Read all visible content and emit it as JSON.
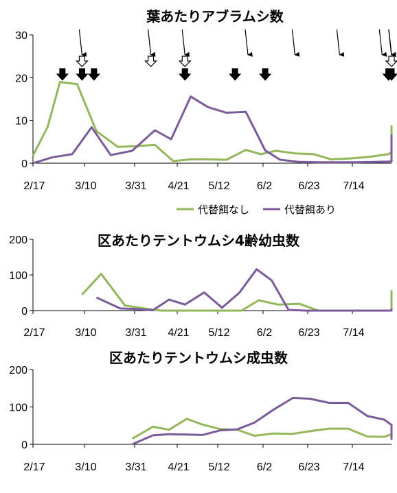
{
  "chart_data": [
    {
      "type": "line",
      "title": "葉あたりアブラムシ数",
      "xlabel": "",
      "ylabel": "",
      "x_ticks": [
        "2/17",
        "3/10",
        "3/31",
        "4/21",
        "5/12",
        "6/2",
        "6/23",
        "7/14"
      ],
      "ylim": [
        0,
        30
      ],
      "y_ticks": [
        "0",
        "10",
        "20",
        "30"
      ],
      "legend": "bottom-right",
      "series": [
        {
          "name": "代替餌なし",
          "color": "#92b65a",
          "points": [
            [
              0,
              1.8
            ],
            [
              6,
              8.5
            ],
            [
              11,
              19
            ],
            [
              18,
              18.5
            ],
            [
              26,
              7.5
            ],
            [
              35,
              3.8
            ],
            [
              43,
              4
            ],
            [
              52,
              4.3
            ],
            [
              61,
              0.5
            ],
            [
              70,
              0.9
            ],
            [
              79,
              0.9
            ],
            [
              88,
              0.8
            ],
            [
              97,
              3.1
            ],
            [
              104,
              2.1
            ],
            [
              111,
              2.9
            ],
            [
              120,
              2.3
            ],
            [
              129,
              2.1
            ],
            [
              137,
              0.9
            ],
            [
              146,
              1.1
            ],
            [
              155,
              1.5
            ],
            [
              164,
              2.1
            ],
            [
              173,
              2.6
            ],
            [
              182,
              3.3
            ],
            [
              192,
              5.1
            ],
            [
              201,
              8.6
            ],
            [
              210,
              3.1
            ]
          ]
        },
        {
          "name": "代替餌あり",
          "color": "#7b5a9c",
          "points": [
            [
              0,
              0
            ],
            [
              8,
              1.4
            ],
            [
              16,
              2.1
            ],
            [
              24,
              8.4
            ],
            [
              32,
              1.9
            ],
            [
              41,
              2.9
            ],
            [
              52,
              7.7
            ],
            [
              60,
              5.6
            ],
            [
              70,
              15.6
            ],
            [
              79,
              13.1
            ],
            [
              88,
              11.8
            ],
            [
              97,
              12
            ],
            [
              106,
              3
            ],
            [
              113,
              0.8
            ],
            [
              122,
              0.3
            ],
            [
              131,
              0.2
            ],
            [
              140,
              0.2
            ],
            [
              149,
              0.2
            ],
            [
              158,
              0.3
            ],
            [
              167,
              0.4
            ],
            [
              176,
              0.6
            ],
            [
              185,
              0.5
            ],
            [
              194,
              0.8
            ],
            [
              203,
              1.6
            ],
            [
              210,
              6.7
            ]
          ]
        }
      ],
      "annotations": {
        "thin_arrow_days": [
          20,
          50,
          67,
          98,
          120,
          141,
          161,
          182,
          198,
          215
        ],
        "open_arrow_days": [
          20,
          50,
          67,
          213
        ],
        "filled_arrow_days": [
          12,
          20,
          25,
          67,
          92,
          106,
          164,
          175,
          188
        ]
      }
    },
    {
      "type": "line",
      "title": "区あたりテントウムシ4齢幼虫数",
      "xlabel": "",
      "ylabel": "",
      "x_ticks": [
        "2/17",
        "3/10",
        "3/31",
        "4/21",
        "5/12",
        "6/2",
        "6/23",
        "7/14"
      ],
      "ylim": [
        0,
        200
      ],
      "y_ticks": [
        "0",
        "100",
        "200"
      ],
      "series": [
        {
          "name": "代替餌なし",
          "color": "#92b65a",
          "points": [
            [
              20,
              45
            ],
            [
              28,
              103
            ],
            [
              38,
              14
            ],
            [
              48,
              5
            ],
            [
              55,
              0
            ],
            [
              65,
              0
            ],
            [
              75,
              0
            ],
            [
              85,
              0
            ],
            [
              95,
              0
            ],
            [
              103,
              29
            ],
            [
              112,
              17
            ],
            [
              122,
              19
            ],
            [
              131,
              0
            ],
            [
              140,
              0
            ],
            [
              150,
              0
            ],
            [
              160,
              0
            ],
            [
              170,
              0
            ],
            [
              180,
              0
            ],
            [
              190,
              0
            ],
            [
              199,
              3
            ],
            [
              206,
              16
            ],
            [
              215,
              57
            ]
          ]
        },
        {
          "name": "代替餌あり",
          "color": "#7b5a9c",
          "points": [
            [
              26,
              37
            ],
            [
              36,
              6
            ],
            [
              44,
              4
            ],
            [
              51,
              1
            ],
            [
              59,
              31
            ],
            [
              67,
              17
            ],
            [
              77,
              51
            ],
            [
              86,
              8
            ],
            [
              94,
              50
            ],
            [
              102,
              116
            ],
            [
              109,
              85
            ],
            [
              117,
              2
            ],
            [
              125,
              0
            ],
            [
              135,
              0
            ],
            [
              145,
              0
            ],
            [
              155,
              0
            ],
            [
              165,
              0
            ],
            [
              175,
              0
            ],
            [
              185,
              0
            ],
            [
              195,
              0
            ],
            [
              205,
              0
            ],
            [
              213,
              6
            ]
          ]
        }
      ]
    },
    {
      "type": "line",
      "title": "区あたりテントウムシ成虫数",
      "xlabel": "",
      "ylabel": "",
      "x_ticks": [
        "2/17",
        "3/10",
        "3/31",
        "4/21",
        "5/12",
        "6/2",
        "6/23",
        "7/14"
      ],
      "ylim": [
        0,
        200
      ],
      "y_ticks": [
        "0",
        "100",
        "200"
      ],
      "series": [
        {
          "name": "代替餌なし",
          "color": "#92b65a",
          "points": [
            [
              41,
              15
            ],
            [
              51,
              47
            ],
            [
              59,
              39
            ],
            [
              68,
              68
            ],
            [
              76,
              53
            ],
            [
              85,
              41
            ],
            [
              93,
              39
            ],
            [
              101,
              23
            ],
            [
              110,
              29
            ],
            [
              119,
              28
            ],
            [
              127,
              35
            ],
            [
              136,
              42
            ],
            [
              145,
              42
            ],
            [
              154,
              21
            ],
            [
              162,
              20
            ],
            [
              171,
              27
            ],
            [
              181,
              39
            ],
            [
              190,
              27
            ],
            [
              198,
              16
            ],
            [
              202,
              13
            ]
          ]
        },
        {
          "name": "代替餌あり",
          "color": "#7b5a9c",
          "points": [
            [
              41,
              0
            ],
            [
              51,
              24
            ],
            [
              59,
              27
            ],
            [
              68,
              26
            ],
            [
              76,
              25
            ],
            [
              85,
              37
            ],
            [
              93,
              40
            ],
            [
              101,
              58
            ],
            [
              110,
              93
            ],
            [
              119,
              124
            ],
            [
              127,
              122
            ],
            [
              136,
              111
            ],
            [
              145,
              111
            ],
            [
              154,
              76
            ],
            [
              162,
              66
            ],
            [
              171,
              52
            ],
            [
              181,
              27
            ],
            [
              190,
              12
            ],
            [
              200,
              12
            ]
          ]
        }
      ]
    }
  ]
}
